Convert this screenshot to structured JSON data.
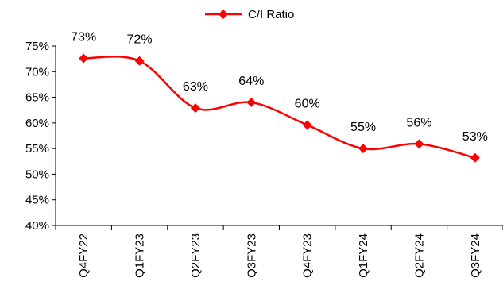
{
  "chart_data": {
    "type": "line",
    "categories": [
      "Q4FY22",
      "Q1FY23",
      "Q2FY23",
      "Q3FY23",
      "Q4FY23",
      "Q1FY24",
      "Q2FY24",
      "Q3FY24"
    ],
    "series": [
      {
        "name": "C/I Ratio",
        "values": [
          72.6,
          72.1,
          62.9,
          64.0,
          59.6,
          55.0,
          55.9,
          53.2
        ],
        "labels": [
          "73%",
          "72%",
          "63%",
          "64%",
          "60%",
          "55%",
          "56%",
          "53%"
        ],
        "color": "#ff0000",
        "marker": "diamond",
        "smooth": true
      }
    ],
    "yticks": [
      "40%",
      "45%",
      "50%",
      "55%",
      "60%",
      "65%",
      "70%",
      "75%"
    ],
    "ylim": [
      40,
      75
    ],
    "ytick_step": 5,
    "grid": false,
    "legend": "top-center",
    "xlabel": "",
    "ylabel": "",
    "title": ""
  }
}
